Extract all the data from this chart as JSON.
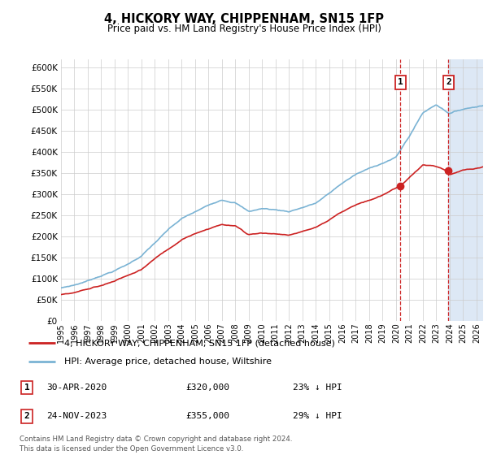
{
  "title": "4, HICKORY WAY, CHIPPENHAM, SN15 1FP",
  "subtitle": "Price paid vs. HM Land Registry's House Price Index (HPI)",
  "ylim": [
    0,
    620000
  ],
  "yticks": [
    0,
    50000,
    100000,
    150000,
    200000,
    250000,
    300000,
    350000,
    400000,
    450000,
    500000,
    550000,
    600000
  ],
  "xlim_start": 1995.0,
  "xlim_end": 2026.5,
  "sale1_date": 2020.33,
  "sale1_price": 320000,
  "sale1_label": "1",
  "sale2_date": 2023.92,
  "sale2_price": 355000,
  "sale2_label": "2",
  "hpi_color": "#7ab3d4",
  "price_color": "#cc2222",
  "legend_label1": "4, HICKORY WAY, CHIPPENHAM, SN15 1FP (detached house)",
  "legend_label2": "HPI: Average price, detached house, Wiltshire",
  "note1_num": "1",
  "note1_date": "30-APR-2020",
  "note1_price": "£320,000",
  "note1_pct": "23% ↓ HPI",
  "note2_num": "2",
  "note2_date": "24-NOV-2023",
  "note2_price": "£355,000",
  "note2_pct": "29% ↓ HPI",
  "footer": "Contains HM Land Registry data © Crown copyright and database right 2024.\nThis data is licensed under the Open Government Licence v3.0.",
  "background_color": "#ffffff",
  "grid_color": "#cccccc"
}
